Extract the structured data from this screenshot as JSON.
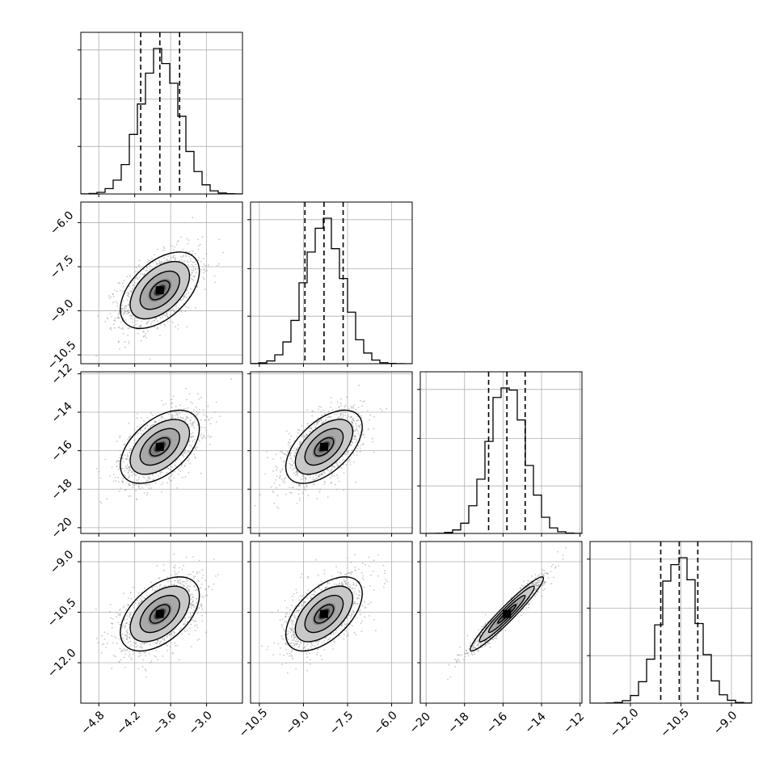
{
  "chart_data": {
    "type": "corner",
    "title": "",
    "n_params": 4,
    "grid": true,
    "colors": {
      "line": "#000000",
      "grid": "#b0b0b0",
      "point": "#9a9a9a",
      "background": "#ffffff"
    },
    "parameters": [
      {
        "mean": -3.78,
        "sd": 0.33,
        "q16": -4.1,
        "q50": -3.78,
        "q84": -3.45,
        "range": [
          -5.1,
          -2.4
        ],
        "ticks": [
          -4.8,
          -4.2,
          -3.6,
          -3.0
        ],
        "tick_labels": [
          "−4.8",
          "−4.2",
          "−3.6",
          "−3.0"
        ]
      },
      {
        "mean": -8.3,
        "sd": 0.65,
        "q16": -8.95,
        "q50": -8.3,
        "q84": -7.65,
        "range": [
          -10.8,
          -5.3
        ],
        "ticks": [
          -10.5,
          -9.0,
          -7.5,
          -6.0
        ],
        "tick_labels": [
          "−10.5",
          "−9.0",
          "−7.5",
          "−6.0"
        ]
      },
      {
        "mean": -15.8,
        "sd": 0.95,
        "q16": -16.75,
        "q50": -15.8,
        "q84": -14.85,
        "range": [
          -20.3,
          -11.9
        ],
        "ticks": [
          -20,
          -18,
          -16,
          -14,
          -12
        ],
        "tick_labels": [
          "−20",
          "−18",
          "−16",
          "−14",
          "−12"
        ]
      },
      {
        "mean": -10.55,
        "sd": 0.55,
        "q16": -11.1,
        "q50": -10.55,
        "q84": -10.0,
        "range": [
          -13.2,
          -8.4
        ],
        "ticks": [
          -12.0,
          -10.5,
          -9.0
        ],
        "tick_labels": [
          "−12.0",
          "−10.5",
          "−9.0"
        ]
      }
    ],
    "correlations": [
      [
        1.0,
        0.5,
        0.5,
        0.5
      ],
      [
        0.5,
        1.0,
        0.55,
        0.55
      ],
      [
        0.5,
        0.55,
        1.0,
        0.96
      ],
      [
        0.5,
        0.55,
        0.96,
        1.0
      ]
    ],
    "histogram_bins": 20,
    "contour_levels_sigma": [
      0.5,
      1.0,
      1.5,
      2.0
    ]
  }
}
